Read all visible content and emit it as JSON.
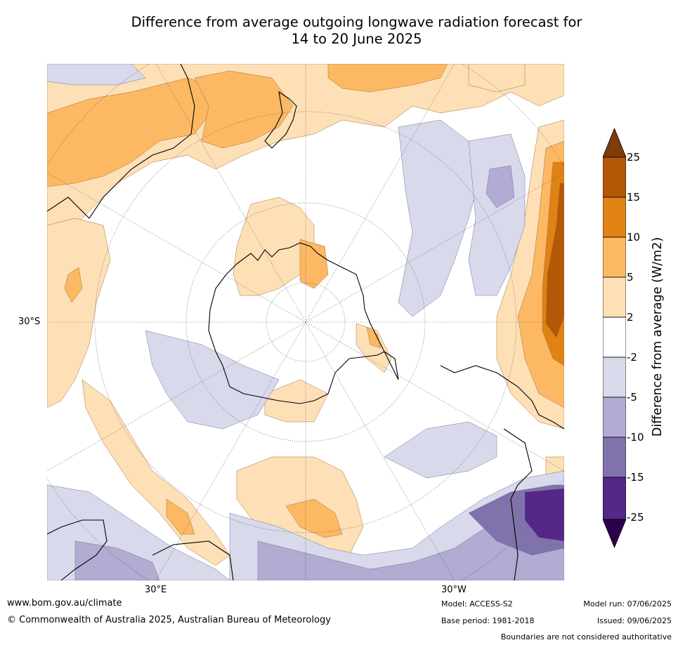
{
  "title": {
    "line1": "Difference from average outgoing longwave radiation forecast for",
    "line2": "14 to 20 June 2025"
  },
  "map": {
    "projection": "south-polar-stereographic",
    "lat_label": "30°S",
    "lon_labels": {
      "east": "30°E",
      "west": "30°W"
    },
    "colors": {
      "ocean_zero": "#ffffff",
      "pos_2_5": "#fde0b6",
      "pos_5_10": "#fbb762",
      "pos_10_15": "#e08214",
      "pos_15_25": "#b35806",
      "pos_over_25": "#7f3b08",
      "neg_2_5": "#d8daeb",
      "neg_5_10": "#b2abd2",
      "neg_10_15": "#8073ac",
      "neg_15_25": "#542788",
      "neg_below_25": "#2d004b",
      "coastline": "#000000",
      "boundary": "#808080",
      "grid": "#404040"
    }
  },
  "colorbar": {
    "label": "Difference from average (W/m2)",
    "ticks": [
      "25",
      "15",
      "10",
      "5",
      "2",
      "-2",
      "-5",
      "-10",
      "-15",
      "-25"
    ],
    "bins": [
      {
        "range": "> 25",
        "color": "#7f3b08"
      },
      {
        "range": "15 to 25",
        "color": "#b35806"
      },
      {
        "range": "10 to 15",
        "color": "#e08214"
      },
      {
        "range": "5 to 10",
        "color": "#fdb863"
      },
      {
        "range": "2 to 5",
        "color": "#fee0b6"
      },
      {
        "range": "-2 to 2",
        "color": "#ffffff"
      },
      {
        "range": "-5 to -2",
        "color": "#d8daeb"
      },
      {
        "range": "-10 to -5",
        "color": "#b2abd2"
      },
      {
        "range": "-15 to -10",
        "color": "#8073ac"
      },
      {
        "range": "-25 to -15",
        "color": "#542788"
      },
      {
        "range": "< -25",
        "color": "#2d004b"
      }
    ]
  },
  "footer": {
    "url": "www.bom.gov.au/climate",
    "copyright": "© Commonwealth of Australia 2025, Australian Bureau of Meteorology",
    "model": "Model: ACCESS-S2",
    "base_period": "Base period: 1981-2018",
    "model_run": "Model run: 07/06/2025",
    "issued": "Issued: 09/06/2025",
    "disclaimer": "Boundaries are not considered authoritative"
  }
}
